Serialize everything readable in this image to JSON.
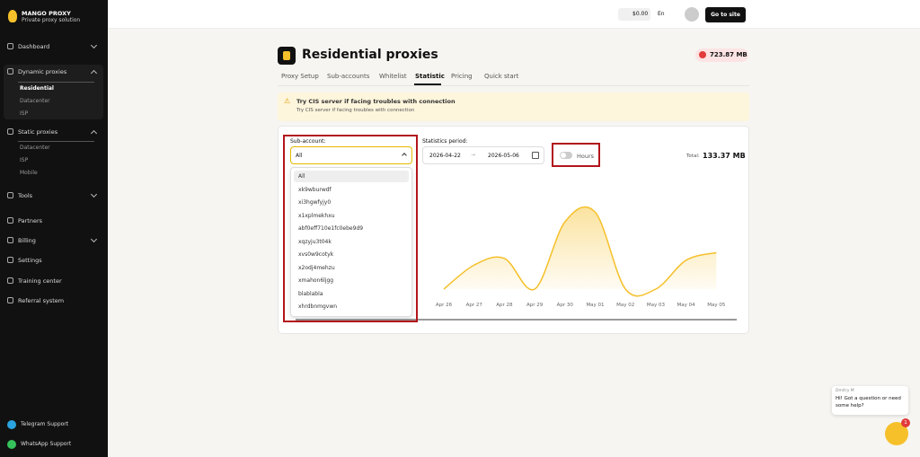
{
  "sidebar": {
    "brand": "MANGO PROXY",
    "tagline": "Private proxy solution",
    "menu": [
      {
        "label": "Dashboard"
      },
      {
        "label": "Dynamic proxies",
        "items": [
          "Residential",
          "Datacenter",
          "ISP"
        ]
      },
      {
        "label": "Static proxies",
        "items": [
          "Datacenter",
          "ISP",
          "Mobile"
        ]
      },
      {
        "label": "Tools"
      },
      {
        "label": "Partners"
      },
      {
        "label": "Billing"
      },
      {
        "label": "Settings"
      },
      {
        "label": "Training center"
      },
      {
        "label": "Referral system"
      }
    ],
    "support": [
      "Telegram Support",
      "WhatsApp Support"
    ]
  },
  "topbar": {
    "balance": "$0.00",
    "language": "En",
    "button": "Go to site"
  },
  "page": {
    "title": "Residential proxies",
    "traffic": "723.87 MB",
    "tabs": [
      "Proxy Setup",
      "Sub-accounts",
      "Whitelist",
      "Statistic",
      "Pricing",
      "Quick start"
    ]
  },
  "alert": {
    "title": "Try CIS server if facing troubles with connection",
    "text": "Try CIS server if facing troubles with connection"
  },
  "filters": {
    "subaccount_label": "Sub-account:",
    "subaccount_value": "All",
    "options": [
      "All",
      "xk9wburwdf",
      "xi3hgwfyjy0",
      "x1xplmekhxu",
      "abf0eff710e1fc0ebe9d9",
      "xqzyju3t04k",
      "xvs0w9cotyk",
      "x2odj4mehzu",
      "xmahon6ljgg",
      "blablabla",
      "xhrdbnmgvwn"
    ],
    "period_label": "Statistics period:",
    "date_from": "2026-04-22",
    "date_to": "2026-05-06",
    "hours": "Hours",
    "total_label": "Total:",
    "total": "133.37 MB"
  },
  "chart_data": {
    "type": "line",
    "categories": [
      "Apr 26",
      "Apr 27",
      "Apr 28",
      "Apr 29",
      "Apr 30",
      "May 01",
      "May 02",
      "May 03",
      "May 04",
      "May 05"
    ],
    "values": [
      0,
      25,
      32,
      0,
      70,
      80,
      0,
      0,
      30,
      38
    ],
    "color": "#f5c02a",
    "ylim": [
      0,
      100
    ]
  },
  "chat": {
    "agent": "Dmitry M",
    "message": "Hi! Got a question or need some help?",
    "badge": "1"
  }
}
